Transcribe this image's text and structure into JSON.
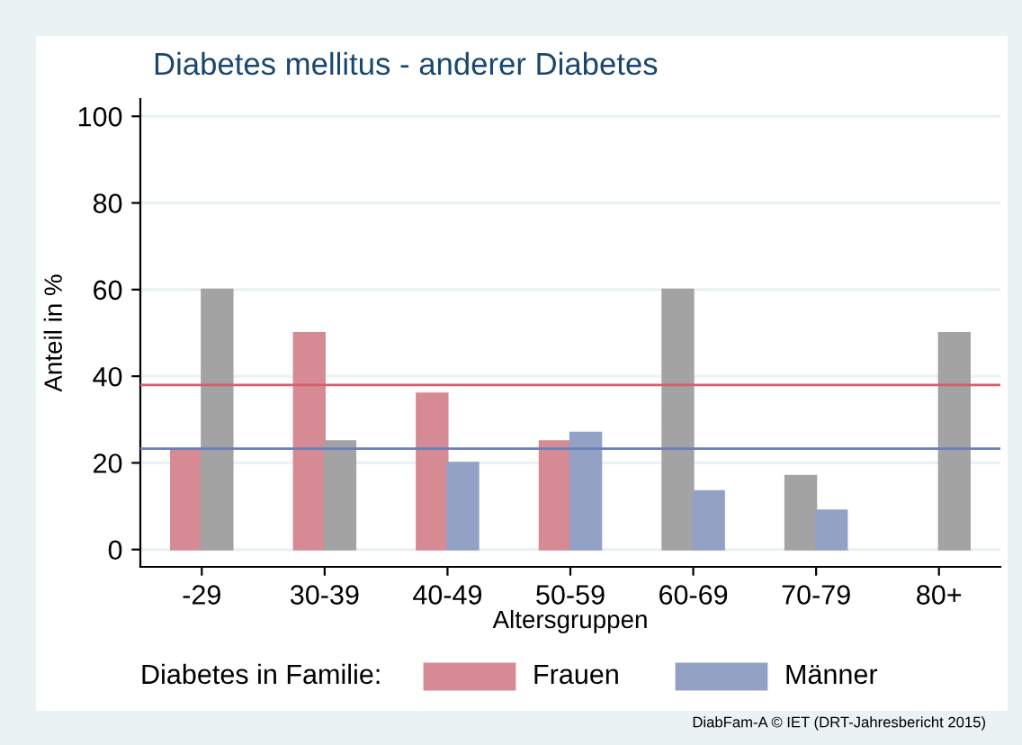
{
  "chart_data": {
    "type": "bar",
    "title": "Diabetes mellitus - anderer Diabetes",
    "xlabel": "Altersgruppen",
    "ylabel": "Anteil in %",
    "legend_title": "Diabetes in Familie:",
    "categories": [
      "-29",
      "30-39",
      "40-49",
      "50-59",
      "60-69",
      "70-79",
      "80+"
    ],
    "series": [
      {
        "name": "Frauen",
        "color": "#d68a94",
        "colors": [
          "#d68a94",
          "#d68a94",
          "#d68a94",
          "#d68a94",
          "#a3a3a3",
          "#a3a3a3",
          null
        ],
        "values": [
          23,
          50,
          36,
          25,
          60,
          17,
          null
        ]
      },
      {
        "name": "Männer",
        "color": "#93a1c5",
        "colors": [
          "#a3a3a3",
          "#a3a3a3",
          "#93a1c5",
          "#93a1c5",
          "#93a1c5",
          "#93a1c5",
          "#a3a3a3"
        ],
        "values": [
          60,
          25,
          20,
          27,
          13.5,
          9,
          50
        ]
      }
    ],
    "ref_lines": [
      {
        "axis": "y",
        "value": 38,
        "color": "#d1606d"
      },
      {
        "axis": "y",
        "value": 23.3,
        "color": "#6a7fb8"
      }
    ],
    "ylim": [
      -4,
      104
    ],
    "yticks": [
      0,
      20,
      40,
      60,
      80,
      100
    ],
    "grid": "y",
    "legend": "bottom",
    "annotations": [
      "DiabFam-A © IET (DRT-Jahresbericht 2015)"
    ]
  }
}
